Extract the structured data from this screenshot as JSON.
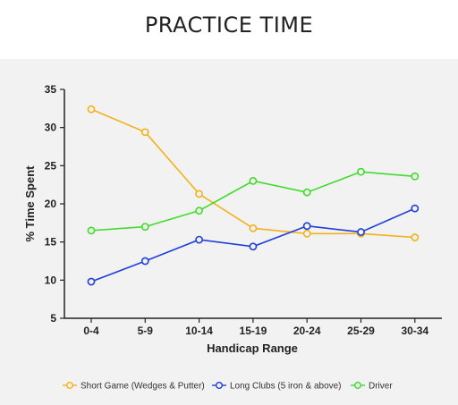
{
  "chart_data": {
    "type": "line",
    "title": "PRACTICE TIME",
    "xlabel": "Handicap Range",
    "ylabel": "% Time Spent",
    "categories": [
      "0-4",
      "5-9",
      "10-14",
      "15-19",
      "20-24",
      "25-29",
      "30-34"
    ],
    "ylim": [
      5,
      35
    ],
    "yticks": [
      5,
      10,
      15,
      20,
      25,
      30,
      35
    ],
    "grid": false,
    "legend_position": "bottom",
    "series": [
      {
        "name": "Short Game (Wedges & Putter)",
        "color": "#f2b21b",
        "values": [
          32.4,
          29.4,
          21.3,
          16.8,
          16.1,
          16.1,
          15.6
        ]
      },
      {
        "name": "Long Clubs (5 iron & above)",
        "color": "#1f3fd6",
        "values": [
          9.8,
          12.5,
          15.3,
          14.4,
          17.1,
          16.3,
          19.4
        ]
      },
      {
        "name": "Driver",
        "color": "#3fdc2a",
        "values": [
          16.5,
          17.0,
          19.1,
          23.0,
          21.5,
          24.2,
          23.6
        ]
      }
    ]
  }
}
